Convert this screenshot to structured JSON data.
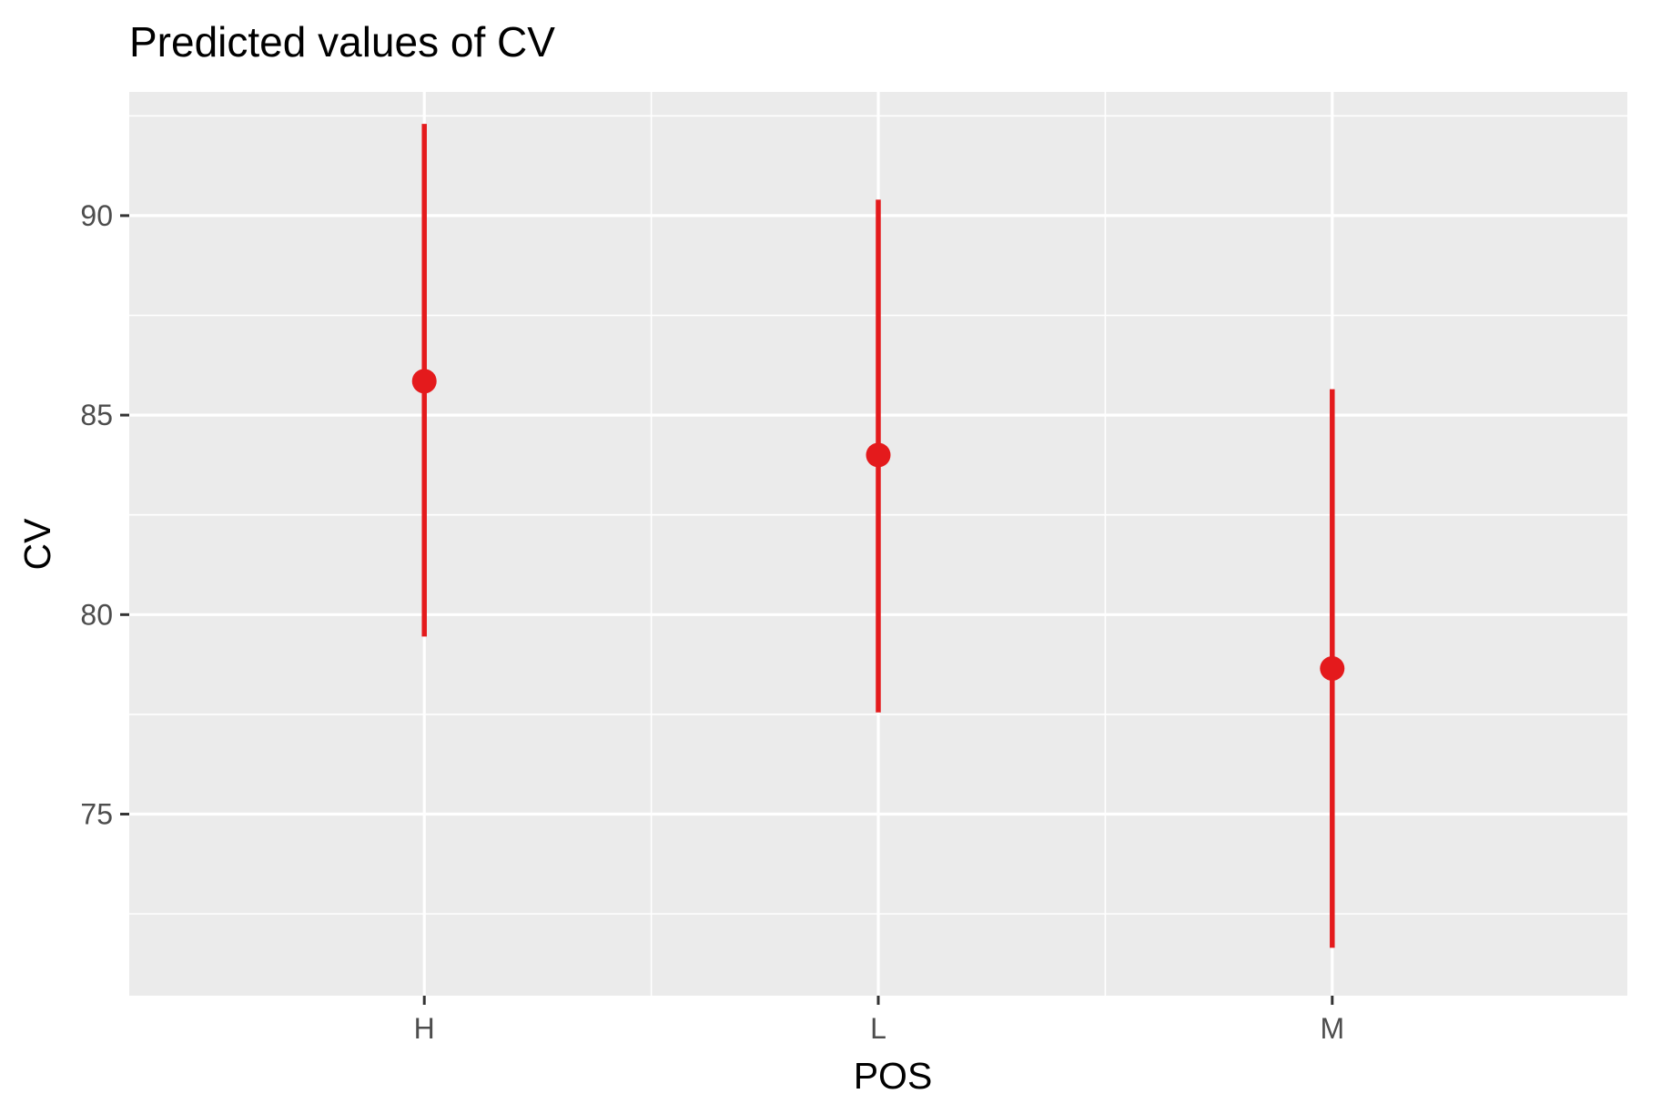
{
  "chart_data": {
    "type": "scatter",
    "title": "Predicted values of CV",
    "xlabel": "POS",
    "ylabel": "CV",
    "categories": [
      "H",
      "L",
      "M"
    ],
    "series": [
      {
        "predicted": [
          85.85,
          84.0,
          78.65
        ],
        "ci_low": [
          79.45,
          77.55,
          71.65
        ],
        "ci_high": [
          92.3,
          90.4,
          85.65
        ],
        "color": "#e41a1c"
      }
    ],
    "ylim": [
      70.45,
      93.1
    ],
    "yticks": [
      75,
      80,
      85,
      90
    ],
    "ytick_labels": [
      "75",
      "80",
      "85",
      "90"
    ],
    "grid": true,
    "panel_background": "#ebebeb",
    "grid_color": "#ffffff"
  }
}
